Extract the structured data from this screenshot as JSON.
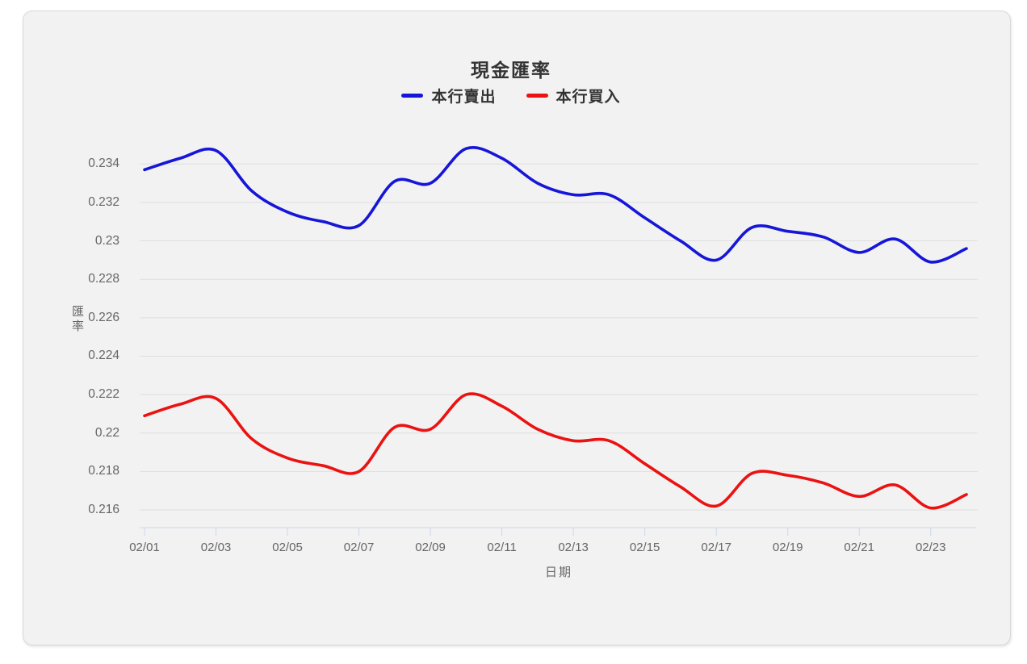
{
  "chart_data": {
    "type": "line",
    "title": "現金匯率",
    "xlabel": "日期",
    "ylabel": "匯率",
    "categories": [
      "02/01",
      "02/02",
      "02/03",
      "02/04",
      "02/05",
      "02/06",
      "02/07",
      "02/08",
      "02/09",
      "02/10",
      "02/11",
      "02/12",
      "02/13",
      "02/14",
      "02/15",
      "02/16",
      "02/17",
      "02/18",
      "02/19",
      "02/20",
      "02/21",
      "02/22",
      "02/23",
      "02/24"
    ],
    "series": [
      {
        "name": "本行賣出",
        "color": "#1616d9",
        "values": [
          0.2337,
          0.2343,
          0.2347,
          0.2326,
          0.2315,
          0.231,
          0.2308,
          0.2331,
          0.233,
          0.2348,
          0.2343,
          0.233,
          0.2324,
          0.2324,
          0.2312,
          0.23,
          0.229,
          0.2307,
          0.2305,
          0.2302,
          0.2294,
          0.2301,
          0.2289,
          0.2296
        ]
      },
      {
        "name": "本行買入",
        "color": "#eb1212",
        "values": [
          0.2209,
          0.2215,
          0.2218,
          0.2197,
          0.2187,
          0.2183,
          0.218,
          0.2203,
          0.2202,
          0.222,
          0.2214,
          0.2202,
          0.2196,
          0.2196,
          0.2184,
          0.2172,
          0.2162,
          0.2179,
          0.2178,
          0.2174,
          0.2167,
          0.2173,
          0.2161,
          0.2168
        ]
      }
    ],
    "ytick_labels": [
      "0.216",
      "0.218",
      "0.22",
      "0.222",
      "0.224",
      "0.226",
      "0.228",
      "0.23",
      "0.232",
      "0.234"
    ],
    "xtick_labels": [
      "02/01",
      "02/03",
      "02/05",
      "02/07",
      "02/09",
      "02/11",
      "02/13",
      "02/15",
      "02/17",
      "02/19",
      "02/21",
      "02/23"
    ],
    "ylim": [
      0.2151,
      0.2358
    ],
    "grid": true,
    "legend_position": "top",
    "curve": "spline"
  },
  "colors": {
    "card_background": "#f2f2f2",
    "card_border": "#d8d8d9",
    "grid_line": "#dedede",
    "axis_line": "#ccd6eb",
    "tick_text": "#666666",
    "title_text": "#333333"
  }
}
